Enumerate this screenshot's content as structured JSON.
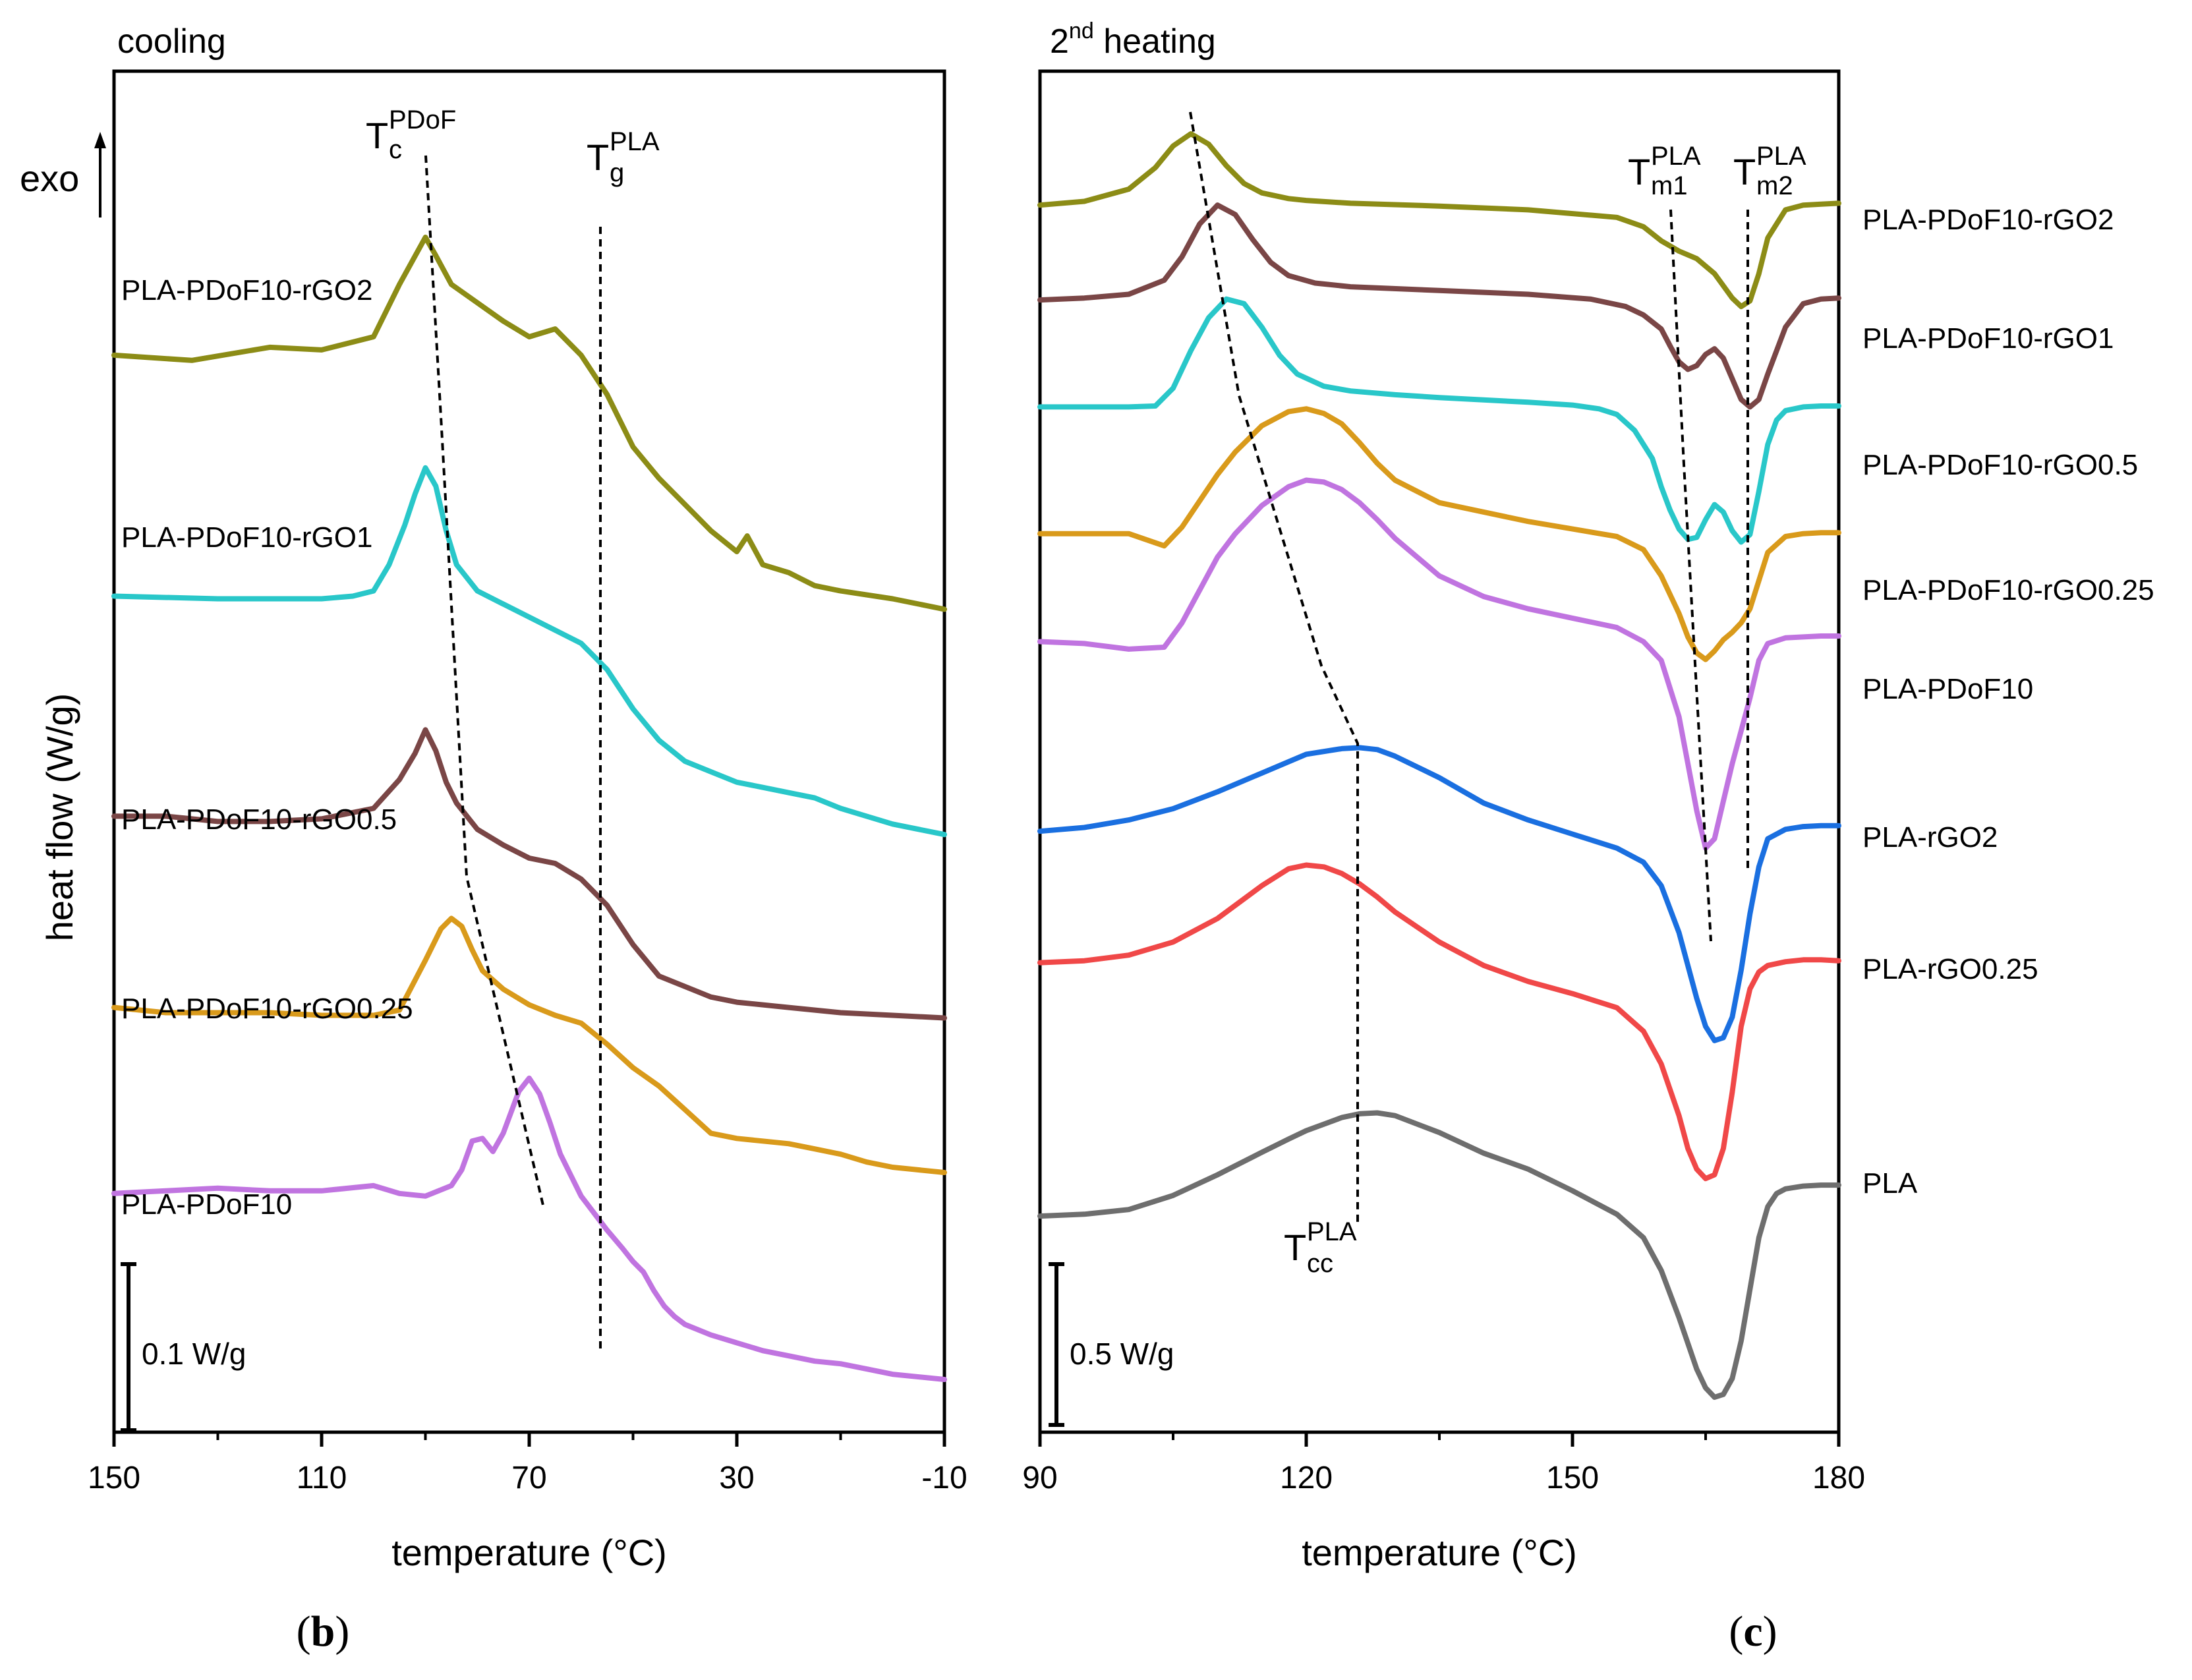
{
  "chart_data": [
    {
      "panel": "b",
      "type": "line",
      "title": "cooling",
      "xlabel": "temperature (°C)",
      "ylabel": "heat flow (W/g)",
      "exo_label": "exo",
      "xlim": [
        150,
        -10
      ],
      "x_ticks": [
        "150",
        "110",
        "70",
        "30",
        "-10"
      ],
      "scale_bar_label": "0.1 W/g",
      "annotations": {
        "tc": {
          "main": "T",
          "sub": "c",
          "sup": "PDoF"
        },
        "tg": {
          "main": "T",
          "sub": "g",
          "sup": "PLA"
        }
      },
      "series": [
        {
          "name": "PLA-PDoF10-rGO2",
          "color": "#8c8c16",
          "x": [
            150,
            135,
            120,
            110,
            100,
            95,
            90,
            88,
            85,
            80,
            75,
            70,
            65,
            60,
            55,
            50,
            45,
            40,
            35,
            30,
            28,
            25,
            20,
            15,
            10,
            0,
            -10
          ],
          "y": [
            2.35,
            2.33,
            2.38,
            2.37,
            2.42,
            2.62,
            2.8,
            2.73,
            2.62,
            2.55,
            2.48,
            2.42,
            2.45,
            2.35,
            2.2,
            2.0,
            1.88,
            1.78,
            1.68,
            1.6,
            1.66,
            1.55,
            1.52,
            1.47,
            1.45,
            1.42,
            1.38
          ]
        },
        {
          "name": "PLA-PDoF10-rGO1",
          "color": "#29c7c9",
          "x": [
            150,
            130,
            110,
            104,
            100,
            97,
            94,
            92,
            90,
            88,
            86,
            84,
            80,
            75,
            70,
            60,
            55,
            50,
            45,
            40,
            35,
            30,
            25,
            20,
            15,
            10,
            5,
            0,
            -10
          ],
          "y": [
            1.43,
            1.42,
            1.42,
            1.43,
            1.45,
            1.55,
            1.7,
            1.82,
            1.92,
            1.85,
            1.68,
            1.55,
            1.45,
            1.4,
            1.35,
            1.25,
            1.15,
            1.0,
            0.88,
            0.8,
            0.76,
            0.72,
            0.7,
            0.68,
            0.66,
            0.62,
            0.59,
            0.56,
            0.52
          ]
        },
        {
          "name": "PLA-PDoF10-rGO0.5",
          "color": "#7a4646",
          "x": [
            150,
            140,
            130,
            120,
            110,
            100,
            95,
            92,
            90,
            88,
            86,
            84,
            80,
            75,
            70,
            65,
            60,
            55,
            50,
            45,
            40,
            35,
            30,
            20,
            10,
            0,
            -10
          ],
          "y": [
            0.59,
            0.59,
            0.57,
            0.57,
            0.58,
            0.62,
            0.73,
            0.83,
            0.92,
            0.84,
            0.72,
            0.64,
            0.54,
            0.48,
            0.43,
            0.41,
            0.35,
            0.25,
            0.1,
            -0.02,
            -0.06,
            -0.1,
            -0.12,
            -0.14,
            -0.16,
            -0.17,
            -0.18
          ]
        },
        {
          "name": "PLA-PDoF10-rGO0.25",
          "color": "#d99a1b",
          "x": [
            150,
            140,
            130,
            120,
            110,
            100,
            95,
            90,
            87,
            85,
            83,
            81,
            79,
            75,
            70,
            65,
            60,
            55,
            50,
            45,
            40,
            35,
            30,
            25,
            20,
            15,
            10,
            5,
            0,
            -10
          ],
          "y": [
            -0.14,
            -0.16,
            -0.16,
            -0.16,
            -0.17,
            -0.17,
            -0.15,
            0.04,
            0.16,
            0.2,
            0.17,
            0.08,
            0.0,
            -0.07,
            -0.13,
            -0.17,
            -0.2,
            -0.28,
            -0.37,
            -0.44,
            -0.53,
            -0.62,
            -0.64,
            -0.65,
            -0.66,
            -0.68,
            -0.7,
            -0.73,
            -0.75,
            -0.77
          ]
        },
        {
          "name": "PLA-PDoF10",
          "color": "#c074e0",
          "x": [
            150,
            140,
            130,
            120,
            110,
            100,
            95,
            90,
            85,
            83,
            81,
            79,
            77,
            75,
            72,
            70,
            68,
            66,
            64,
            62,
            60,
            55,
            52,
            50,
            48,
            46,
            44,
            42,
            40,
            35,
            30,
            25,
            20,
            15,
            10,
            5,
            0,
            -10
          ],
          "y": [
            -0.85,
            -0.84,
            -0.83,
            -0.84,
            -0.84,
            -0.82,
            -0.85,
            -0.86,
            -0.82,
            -0.76,
            -0.65,
            -0.64,
            -0.69,
            -0.62,
            -0.46,
            -0.41,
            -0.47,
            -0.58,
            -0.7,
            -0.78,
            -0.86,
            -0.99,
            -1.06,
            -1.11,
            -1.15,
            -1.22,
            -1.28,
            -1.32,
            -1.35,
            -1.39,
            -1.42,
            -1.45,
            -1.47,
            -1.49,
            -1.5,
            -1.52,
            -1.54,
            -1.56
          ]
        }
      ]
    },
    {
      "panel": "c",
      "type": "line",
      "title": "2nd heating",
      "title_parts": {
        "num": "2",
        "sup": "nd",
        "rest": " heating"
      },
      "xlabel": "temperature (°C)",
      "xlim": [
        90,
        180
      ],
      "x_ticks": [
        "90",
        "120",
        "150",
        "180"
      ],
      "scale_bar_label": "0.5 W/g",
      "annotations": {
        "tm1": {
          "main": "T",
          "sub": "m1",
          "sup": "PLA"
        },
        "tm2": {
          "main": "T",
          "sub": "m2",
          "sup": "PLA"
        },
        "tcc": {
          "main": "T",
          "sub": "cc",
          "sup": "PLA"
        }
      },
      "series": [
        {
          "name": "PLA-PDoF10-rGO2",
          "color": "#8c8c16",
          "x": [
            90,
            95,
            100,
            103,
            105,
            107,
            109,
            111,
            113,
            115,
            118,
            120,
            125,
            135,
            145,
            155,
            158,
            160,
            162,
            164,
            166,
            168,
            169,
            170,
            171,
            172,
            174,
            176,
            178,
            180
          ],
          "y": [
            5.55,
            5.59,
            5.72,
            5.95,
            6.18,
            6.31,
            6.2,
            5.97,
            5.78,
            5.68,
            5.62,
            5.6,
            5.57,
            5.54,
            5.5,
            5.42,
            5.32,
            5.17,
            5.06,
            4.98,
            4.82,
            4.56,
            4.47,
            4.53,
            4.82,
            5.2,
            5.5,
            5.55,
            5.56,
            5.57
          ]
        },
        {
          "name": "PLA-PDoF10-rGO1",
          "color": "#7a4646",
          "x": [
            90,
            95,
            100,
            104,
            106,
            108,
            110,
            112,
            114,
            116,
            118,
            121,
            125,
            135,
            145,
            152,
            156,
            158,
            160,
            161,
            162,
            163,
            164,
            165,
            166,
            167,
            168,
            169,
            170,
            171,
            172,
            174,
            176,
            178,
            180
          ],
          "y": [
            4.54,
            4.56,
            4.6,
            4.75,
            5.0,
            5.35,
            5.55,
            5.45,
            5.18,
            4.94,
            4.8,
            4.72,
            4.68,
            4.64,
            4.6,
            4.55,
            4.47,
            4.38,
            4.23,
            4.05,
            3.88,
            3.8,
            3.84,
            3.96,
            4.02,
            3.92,
            3.7,
            3.48,
            3.4,
            3.48,
            3.75,
            4.25,
            4.5,
            4.55,
            4.56
          ]
        },
        {
          "name": "PLA-PDoF10-rGO0.5",
          "color": "#29c7c9",
          "x": [
            90,
            95,
            100,
            103,
            105,
            107,
            109,
            111,
            113,
            115,
            117,
            119,
            122,
            125,
            130,
            135,
            145,
            150,
            153,
            155,
            157,
            159,
            160,
            161,
            162,
            163,
            164,
            165,
            166,
            167,
            168,
            169,
            170,
            171,
            172,
            173,
            174,
            176,
            178,
            180
          ],
          "y": [
            3.4,
            3.4,
            3.4,
            3.41,
            3.6,
            4.0,
            4.35,
            4.55,
            4.5,
            4.25,
            3.95,
            3.75,
            3.62,
            3.57,
            3.53,
            3.5,
            3.45,
            3.42,
            3.38,
            3.32,
            3.15,
            2.85,
            2.55,
            2.3,
            2.1,
            1.99,
            2.01,
            2.2,
            2.36,
            2.28,
            2.08,
            1.96,
            2.04,
            2.5,
            3.0,
            3.26,
            3.36,
            3.4,
            3.41,
            3.41
          ]
        },
        {
          "name": "PLA-PDoF10-rGO0.25",
          "color": "#d99a1b",
          "x": [
            90,
            95,
            100,
            104,
            106,
            108,
            110,
            112,
            115,
            118,
            120,
            122,
            124,
            126,
            128,
            130,
            135,
            145,
            150,
            155,
            158,
            160,
            162,
            163,
            164,
            165,
            166,
            167,
            168,
            169,
            170,
            171,
            172,
            174,
            176,
            178,
            180
          ],
          "y": [
            2.05,
            2.05,
            2.05,
            1.92,
            2.12,
            2.4,
            2.68,
            2.92,
            3.2,
            3.35,
            3.38,
            3.33,
            3.22,
            3.02,
            2.8,
            2.62,
            2.38,
            2.18,
            2.1,
            2.02,
            1.88,
            1.6,
            1.2,
            0.95,
            0.78,
            0.71,
            0.8,
            0.92,
            1.0,
            1.1,
            1.25,
            1.55,
            1.85,
            2.02,
            2.05,
            2.06,
            2.06
          ]
        },
        {
          "name": "PLA-PDoF10",
          "color": "#c074e0",
          "x": [
            90,
            95,
            100,
            104,
            106,
            108,
            110,
            112,
            115,
            118,
            120,
            122,
            124,
            126,
            128,
            130,
            135,
            140,
            145,
            150,
            155,
            158,
            160,
            162,
            163,
            164,
            165,
            166,
            167,
            168,
            169,
            170,
            171,
            172,
            174,
            176,
            178,
            180
          ],
          "y": [
            0.9,
            0.88,
            0.82,
            0.84,
            1.1,
            1.45,
            1.8,
            2.05,
            2.35,
            2.55,
            2.62,
            2.6,
            2.52,
            2.38,
            2.2,
            2.0,
            1.6,
            1.38,
            1.25,
            1.15,
            1.05,
            0.9,
            0.7,
            0.1,
            -0.4,
            -0.9,
            -1.3,
            -1.2,
            -0.8,
            -0.4,
            -0.05,
            0.3,
            0.7,
            0.88,
            0.94,
            0.95,
            0.96,
            0.96
          ]
        },
        {
          "name": "PLA-rGO2",
          "color": "#1a6fe0",
          "x": [
            90,
            95,
            100,
            105,
            110,
            115,
            120,
            124,
            126,
            128,
            130,
            135,
            140,
            145,
            150,
            155,
            158,
            160,
            162,
            164,
            165,
            166,
            167,
            168,
            169,
            170,
            171,
            172,
            174,
            176,
            178,
            180
          ],
          "y": [
            -1.12,
            -1.08,
            -1.0,
            -0.88,
            -0.7,
            -0.5,
            -0.3,
            -0.24,
            -0.23,
            -0.25,
            -0.32,
            -0.55,
            -0.82,
            -1.0,
            -1.15,
            -1.3,
            -1.45,
            -1.7,
            -2.2,
            -2.9,
            -3.2,
            -3.35,
            -3.32,
            -3.1,
            -2.6,
            -2.0,
            -1.5,
            -1.2,
            -1.1,
            -1.07,
            -1.06,
            -1.06
          ]
        },
        {
          "name": "PLA-rGO0.25",
          "color": "#f04848",
          "x": [
            90,
            95,
            100,
            105,
            110,
            115,
            118,
            120,
            122,
            124,
            126,
            128,
            130,
            135,
            140,
            145,
            150,
            155,
            158,
            160,
            162,
            163,
            164,
            165,
            166,
            167,
            168,
            169,
            170,
            171,
            172,
            174,
            176,
            178,
            180
          ],
          "y": [
            -2.52,
            -2.5,
            -2.44,
            -2.3,
            -2.05,
            -1.7,
            -1.52,
            -1.48,
            -1.5,
            -1.57,
            -1.68,
            -1.82,
            -1.98,
            -2.3,
            -2.55,
            -2.72,
            -2.85,
            -3.0,
            -3.25,
            -3.6,
            -4.15,
            -4.5,
            -4.72,
            -4.82,
            -4.78,
            -4.5,
            -3.9,
            -3.2,
            -2.8,
            -2.62,
            -2.55,
            -2.51,
            -2.49,
            -2.49,
            -2.5
          ]
        },
        {
          "name": "PLA",
          "color": "#6e6e6e",
          "x": [
            90,
            95,
            100,
            105,
            110,
            115,
            118,
            120,
            122,
            124,
            126,
            128,
            130,
            135,
            140,
            145,
            150,
            155,
            158,
            160,
            162,
            164,
            165,
            166,
            167,
            168,
            169,
            170,
            171,
            172,
            173,
            174,
            176,
            178,
            180
          ],
          "y": [
            -5.22,
            -5.2,
            -5.15,
            -5.0,
            -4.78,
            -4.54,
            -4.4,
            -4.31,
            -4.24,
            -4.17,
            -4.13,
            -4.12,
            -4.15,
            -4.33,
            -4.55,
            -4.72,
            -4.95,
            -5.2,
            -5.45,
            -5.8,
            -6.3,
            -6.85,
            -7.05,
            -7.15,
            -7.12,
            -6.95,
            -6.55,
            -6.0,
            -5.45,
            -5.12,
            -4.98,
            -4.93,
            -4.9,
            -4.89,
            -4.89
          ]
        }
      ]
    }
  ],
  "panel_labels": {
    "left": "(b)",
    "right": "(c)"
  }
}
